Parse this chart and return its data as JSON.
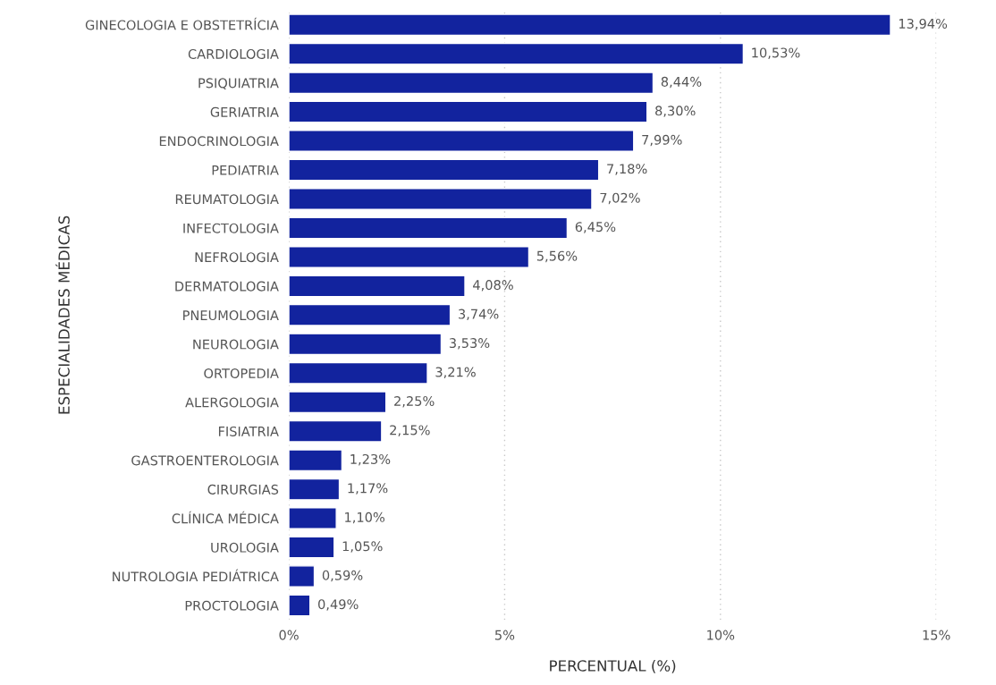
{
  "chart_data": {
    "type": "bar",
    "orientation": "horizontal",
    "xlabel": "PERCENTUAL (%)",
    "ylabel": "ESPECIALIDADES MÉDICAS",
    "categories": [
      "GINECOLOGIA E OBSTETRÍCIA",
      "CARDIOLOGIA",
      "PSIQUIATRIA",
      "GERIATRIA",
      "ENDOCRINOLOGIA",
      "PEDIATRIA",
      "REUMATOLOGIA",
      "INFECTOLOGIA",
      "NEFROLOGIA",
      "DERMATOLOGIA",
      "PNEUMOLOGIA",
      "NEUROLOGIA",
      "ORTOPEDIA",
      "ALERGOLOGIA",
      "FISIATRIA",
      "GASTROENTEROLOGIA",
      "CIRURGIAS",
      "CLÍNICA MÉDICA",
      "UROLOGIA",
      "NUTROLOGIA PEDIÁTRICA",
      "PROCTOLOGIA"
    ],
    "values": [
      13.94,
      10.53,
      8.44,
      8.3,
      7.99,
      7.18,
      7.02,
      6.45,
      5.56,
      4.08,
      3.74,
      3.53,
      3.21,
      2.25,
      2.15,
      1.23,
      1.17,
      1.1,
      1.05,
      0.59,
      0.49
    ],
    "value_labels": [
      "13,94%",
      "10,53%",
      "8,44%",
      "8,30%",
      "7,99%",
      "7,18%",
      "7,02%",
      "6,45%",
      "5,56%",
      "4,08%",
      "3,74%",
      "3,53%",
      "3,21%",
      "2,25%",
      "2,15%",
      "1,23%",
      "1,17%",
      "1,10%",
      "1,05%",
      "0,59%",
      "0,49%"
    ],
    "color": "#12239e",
    "xlim": [
      0,
      15
    ],
    "xticks": [
      {
        "value": 0,
        "label": "0%"
      },
      {
        "value": 5,
        "label": "5%"
      },
      {
        "value": 10,
        "label": "10%"
      },
      {
        "value": 15,
        "label": "15%"
      }
    ],
    "grid": "x"
  }
}
